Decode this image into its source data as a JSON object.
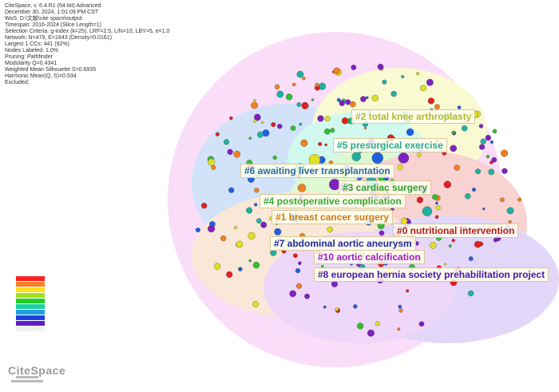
{
  "header": {
    "lines": [
      "CiteSpace, v. 6.4.R1 (64-bit) Advanced",
      "December 30, 2024, 1:01:09 PM CST",
      "WoS: D:\\文献\\cite space\\output",
      "Timespan: 2016-2024 (Slice Length=1)",
      "Selection Criteria: g-index (k=25), LRF=2.5, L/N=10, LBY=5, e=1.0",
      "Network: N=479, E=1843 (Density=0.0161)",
      "Largest 1 CCs: 441 (92%)",
      "Nodes Labeled: 1.0%",
      "Pruning: Pathfinder",
      "Modularity Q=0.4341",
      "Weighted Mean Silhouette S=0.6935",
      "Harmonic Mean(Q, S)=0.534",
      "Excluded:"
    ]
  },
  "clusters": [
    {
      "label": "#2 total knee arthroplasty",
      "color": "#b8b830"
    },
    {
      "label": "#5 presurgical exercise",
      "color": "#2aa890"
    },
    {
      "label": "#6 awaiting liver transplantation",
      "color": "#2a6aa0"
    },
    {
      "label": "#3 cardiac surgery",
      "color": "#30a030"
    },
    {
      "label": "#4 postoperative complication",
      "color": "#3aa83a"
    },
    {
      "label": "#1 breast cancer surgery",
      "color": "#d07a10"
    },
    {
      "label": "#0 nutritional intervention",
      "color": "#c01818"
    },
    {
      "label": "#7 abdominal aortic aneurysm",
      "color": "#1e2a9a"
    },
    {
      "label": "#10 aortic calcification",
      "color": "#a018c0"
    },
    {
      "label": "#8 european hernia society prehabilitation project",
      "color": "#4a18a8"
    }
  ],
  "logo": "CiteSpace"
}
